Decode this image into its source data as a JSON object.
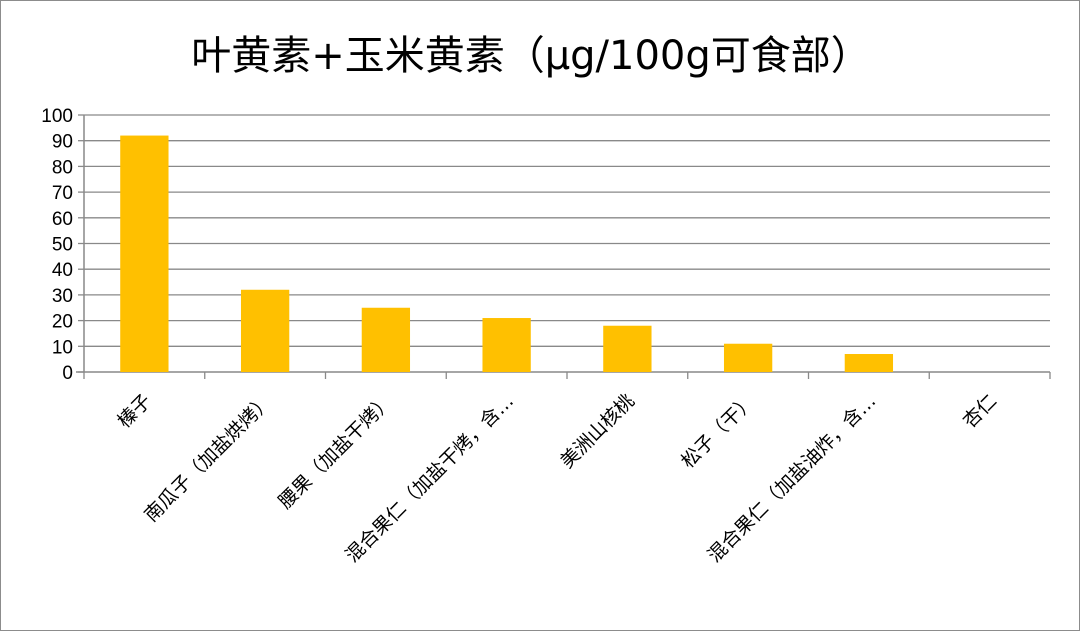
{
  "chart_data": {
    "type": "bar",
    "title": "叶黄素+玉米黄素（μg/100g可食部）",
    "xlabel": "",
    "ylabel": "",
    "categories": [
      "榛子",
      "南瓜子（加盐烘烤）",
      "腰果（加盐干烤）",
      "混合果仁（加盐干烤，含…",
      "美洲山核桃",
      "松子（干）",
      "混合果仁（加盐油炸，含…",
      "杏仁"
    ],
    "values": [
      92,
      32,
      25,
      21,
      18,
      11,
      7,
      0
    ],
    "ylim": [
      0,
      100
    ],
    "yticks": [
      "0",
      "10",
      "20",
      "30",
      "40",
      "50",
      "60",
      "70",
      "80",
      "90",
      "100"
    ],
    "grid": true,
    "legend": "none",
    "bar_color": "#FFC000",
    "grid_color": "#898989"
  }
}
